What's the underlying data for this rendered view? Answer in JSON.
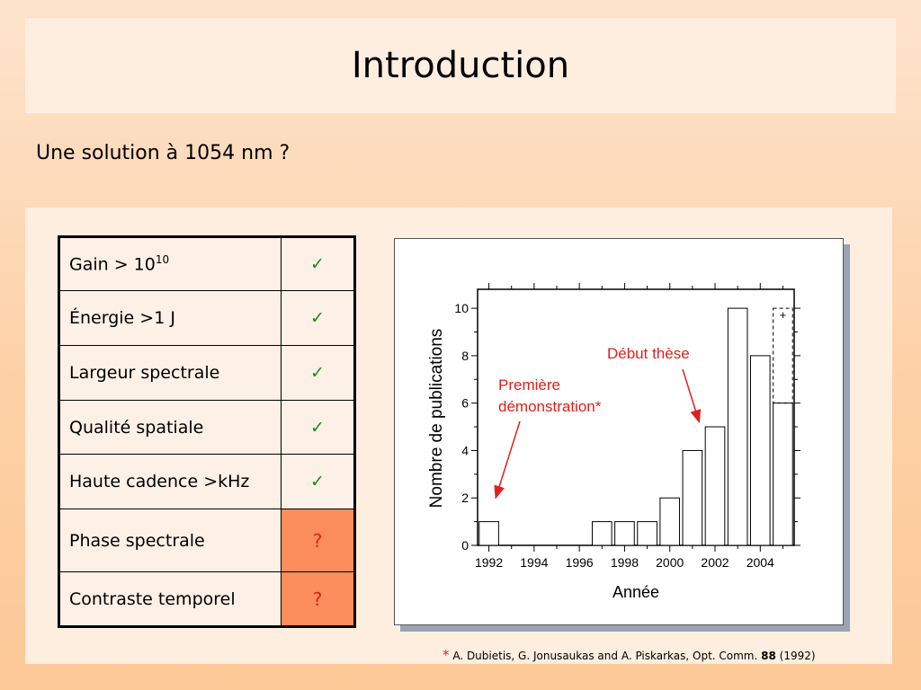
{
  "slide": {
    "title": "Introduction",
    "subtitle": "Une solution à 1054 nm ?"
  },
  "table": {
    "rows": [
      {
        "label": "Gain > 10",
        "sup": "10",
        "status": "✓",
        "kind": "ok"
      },
      {
        "label": "Énergie >1 J",
        "status": "✓",
        "kind": "ok"
      },
      {
        "label": "Largeur spectrale",
        "status": "✓",
        "kind": "ok"
      },
      {
        "label": "Qualité spatiale",
        "status": "✓",
        "kind": "ok"
      },
      {
        "label": "Haute cadence >kHz",
        "status": "✓",
        "kind": "ok"
      },
      {
        "label": "Phase spectrale",
        "status": "?",
        "kind": "unknown"
      },
      {
        "label": "Contraste temporel",
        "status": "?",
        "kind": "unknown"
      }
    ],
    "colors": {
      "ok": "#1a8a1a",
      "unknown": "#e0201a",
      "unknown_bg": "#fc8d5c"
    }
  },
  "chart_data": {
    "type": "bar",
    "xlabel": "Année",
    "ylabel": "Nombre de publications",
    "xlim": [
      1991.5,
      2005.5
    ],
    "ylim": [
      0,
      10.8
    ],
    "x_ticks": [
      1992,
      1994,
      1996,
      1998,
      2000,
      2002,
      2004
    ],
    "y_ticks": [
      0,
      2,
      4,
      6,
      8,
      10
    ],
    "x": [
      1992,
      1993,
      1994,
      1995,
      1996,
      1997,
      1998,
      1999,
      2000,
      2001,
      2002,
      2003,
      2004,
      2005
    ],
    "values": [
      1,
      0,
      0,
      0,
      0,
      1,
      1,
      1,
      2,
      4,
      5,
      10,
      8,
      6
    ],
    "partial_year": {
      "x": 2005,
      "extra": 4,
      "label": "+"
    },
    "annotations": [
      {
        "text": [
          "Première",
          "démonstration*"
        ],
        "points_to": {
          "x": 1992.3,
          "y": 2
        }
      },
      {
        "text": [
          "Début thèse"
        ],
        "points_to": {
          "x": 2001.3,
          "y": 5.2
        }
      }
    ],
    "annotation_color": "#e0201a",
    "bar_fill": "#ffffff",
    "bar_stroke": "#000000",
    "grid": false
  },
  "footnote": {
    "star": "*",
    "authors": " A. Dubietis, G. Jonusaukas and A. Piskarkas, Opt. Comm. ",
    "volume": "88",
    "year": " (1992)"
  }
}
